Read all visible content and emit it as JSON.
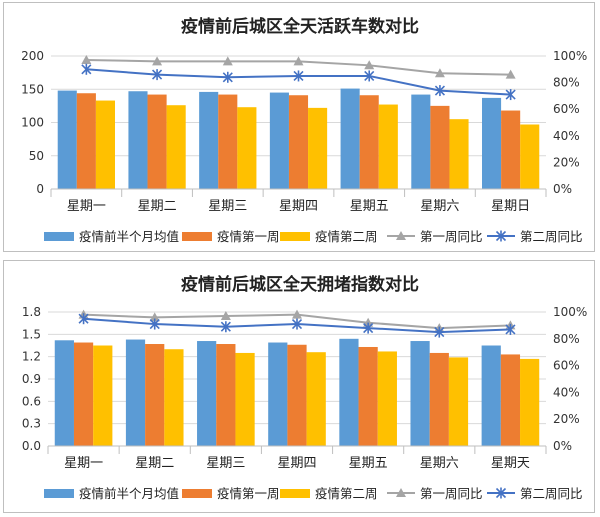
{
  "colors": {
    "baseline": "#5b9bd5",
    "week1": "#ed7d31",
    "week2": "#ffc000",
    "week1_ratio": "#a5a5a5",
    "week2_ratio": "#4472c4"
  },
  "chart_data": [
    {
      "type": "bar",
      "title": "疫情前后城区全天活跃车数对比",
      "categories": [
        "星期一",
        "星期二",
        "星期三",
        "星期四",
        "星期五",
        "星期六",
        "星期日"
      ],
      "y_left": {
        "min": 0,
        "max": 200,
        "ticks": [
          "0",
          "50",
          "100",
          "150",
          "200"
        ]
      },
      "y_right": {
        "min": 0,
        "max": 1,
        "ticks": [
          "0%",
          "20%",
          "40%",
          "60%",
          "80%",
          "100%"
        ]
      },
      "grid": true,
      "legend_position": "bottom",
      "series": [
        {
          "name": "疫情前半个月均值",
          "kind": "bar",
          "axis": "left",
          "values": [
            148,
            147,
            146,
            145,
            151,
            142,
            137
          ]
        },
        {
          "name": "疫情第一周",
          "kind": "bar",
          "axis": "left",
          "values": [
            144,
            142,
            142,
            141,
            141,
            125,
            118
          ]
        },
        {
          "name": "疫情第二周",
          "kind": "bar",
          "axis": "left",
          "values": [
            133,
            126,
            123,
            122,
            127,
            105,
            97
          ]
        },
        {
          "name": "第一周同比",
          "kind": "line",
          "marker": "triangle",
          "axis": "right",
          "values": [
            0.97,
            0.96,
            0.96,
            0.96,
            0.93,
            0.87,
            0.86
          ]
        },
        {
          "name": "第二周同比",
          "kind": "line",
          "marker": "star",
          "axis": "right",
          "values": [
            0.9,
            0.86,
            0.84,
            0.85,
            0.85,
            0.74,
            0.71
          ]
        }
      ]
    },
    {
      "type": "bar",
      "title": "疫情前后城区全天拥堵指数对比",
      "categories": [
        "星期一",
        "星期二",
        "星期三",
        "星期四",
        "星期五",
        "星期六",
        "星期天"
      ],
      "y_left": {
        "min": 0,
        "max": 1.8,
        "ticks": [
          "0.0",
          "0.3",
          "0.6",
          "0.9",
          "1.2",
          "1.5",
          "1.8"
        ]
      },
      "y_right": {
        "min": 0,
        "max": 1,
        "ticks": [
          "0%",
          "20%",
          "40%",
          "60%",
          "80%",
          "100%"
        ]
      },
      "grid": true,
      "legend_position": "bottom",
      "series": [
        {
          "name": "疫情前半个月均值",
          "kind": "bar",
          "axis": "left",
          "values": [
            1.42,
            1.43,
            1.41,
            1.39,
            1.44,
            1.41,
            1.35
          ]
        },
        {
          "name": "疫情第一周",
          "kind": "bar",
          "axis": "left",
          "values": [
            1.39,
            1.37,
            1.37,
            1.36,
            1.33,
            1.25,
            1.23
          ]
        },
        {
          "name": "疫情第二周",
          "kind": "bar",
          "axis": "left",
          "values": [
            1.35,
            1.3,
            1.25,
            1.26,
            1.27,
            1.19,
            1.17
          ]
        },
        {
          "name": "第一周同比",
          "kind": "line",
          "marker": "triangle",
          "axis": "right",
          "values": [
            0.98,
            0.96,
            0.97,
            0.98,
            0.92,
            0.88,
            0.9
          ]
        },
        {
          "name": "第二周同比",
          "kind": "line",
          "marker": "star",
          "axis": "right",
          "values": [
            0.95,
            0.91,
            0.89,
            0.91,
            0.88,
            0.85,
            0.87
          ]
        }
      ]
    }
  ]
}
